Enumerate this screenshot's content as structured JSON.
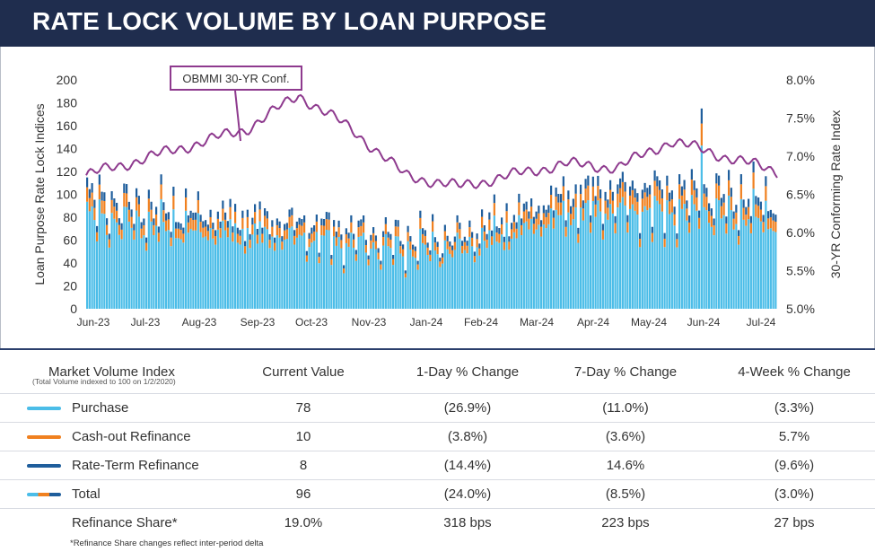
{
  "header": {
    "title": "RATE LOCK VOLUME BY LOAN PURPOSE"
  },
  "colors": {
    "purchase": "#4bbde8",
    "cashout": "#f0801f",
    "rateterm": "#1f5e9c",
    "index_line": "#8e3a8e",
    "header_bg": "#1f2d4e"
  },
  "chart_data": {
    "type": "bar",
    "stacked": true,
    "ylabel": "Loan Purpose Rate Lock Indices",
    "y2label": "30-YR Conforming Rate Index",
    "ylim": [
      0,
      200
    ],
    "y2lim": [
      5.0,
      8.0
    ],
    "y_ticks": [
      "200",
      "180",
      "160",
      "140",
      "120",
      "100",
      "80",
      "60",
      "40",
      "20",
      "0"
    ],
    "y2_ticks": [
      "8.0%",
      "7.5%",
      "7.0%",
      "6.5%",
      "6.0%",
      "5.5%",
      "5.0%"
    ],
    "x_ticks": [
      "Jun-23",
      "Jul-23",
      "Aug-23",
      "Sep-23",
      "Oct-23",
      "Nov-23",
      "Jan-24",
      "Feb-24",
      "Mar-24",
      "Apr-24",
      "May-24",
      "Jun-24",
      "Jul-24"
    ],
    "annotation": "OBMMI 30-YR Conf.",
    "series": [
      {
        "name": "Purchase",
        "color": "#4bbde8"
      },
      {
        "name": "Cash-out Refinance",
        "color": "#f0801f"
      },
      {
        "name": "Rate-Term Refinance",
        "color": "#1f5e9c"
      }
    ],
    "monthly_total_index": [
      {
        "x": "Jun-23",
        "total": 98
      },
      {
        "x": "Jul-23",
        "total": 90
      },
      {
        "x": "Aug-23",
        "total": 85
      },
      {
        "x": "Sep-23",
        "total": 80
      },
      {
        "x": "Oct-23",
        "total": 76
      },
      {
        "x": "Nov-23",
        "total": 68
      },
      {
        "x": "Dec-23",
        "total": 62
      },
      {
        "x": "Jan-24",
        "total": 64
      },
      {
        "x": "Feb-24",
        "total": 82
      },
      {
        "x": "Mar-24",
        "total": 100
      },
      {
        "x": "Apr-24",
        "total": 105
      },
      {
        "x": "May-24",
        "total": 102
      },
      {
        "x": "Jun-24",
        "total": 100
      },
      {
        "x": "Jul-24",
        "total": 96
      }
    ],
    "rate_index": [
      {
        "x": "Jun-23",
        "rate": 6.75
      },
      {
        "x": "Jul-23",
        "rate": 6.95
      },
      {
        "x": "Aug-23",
        "rate": 7.15
      },
      {
        "x": "Sep-23",
        "rate": 7.35
      },
      {
        "x": "Oct-23",
        "rate": 7.8
      },
      {
        "x": "Nov-23",
        "rate": 7.35
      },
      {
        "x": "Dec-23",
        "rate": 6.75
      },
      {
        "x": "Jan-24",
        "rate": 6.6
      },
      {
        "x": "Feb-24",
        "rate": 6.75
      },
      {
        "x": "Mar-24",
        "rate": 6.9
      },
      {
        "x": "Apr-24",
        "rate": 6.85
      },
      {
        "x": "May-24",
        "rate": 7.2
      },
      {
        "x": "Jun-24",
        "rate": 7.0
      },
      {
        "x": "Jul-24",
        "rate": 6.8
      }
    ]
  },
  "table": {
    "headers": [
      "Market Volume Index",
      "Current Value",
      "1-Day % Change",
      "7-Day % Change",
      "4-Week % Change"
    ],
    "subnote": "(Total Volume indexed to 100 on 1/2/2020)",
    "rows": [
      {
        "label": "Purchase",
        "current": "78",
        "d1": "(26.9%)",
        "d7": "(11.0%)",
        "w4": "(3.3%)"
      },
      {
        "label": "Cash-out Refinance",
        "current": "10",
        "d1": "(3.8%)",
        "d7": "(3.6%)",
        "w4": "5.7%"
      },
      {
        "label": "Rate-Term Refinance",
        "current": "8",
        "d1": "(14.4%)",
        "d7": "14.6%",
        "w4": "(9.6%)"
      },
      {
        "label": "Total",
        "current": "96",
        "d1": "(24.0%)",
        "d7": "(8.5%)",
        "w4": "(3.0%)"
      },
      {
        "label": "Refinance Share*",
        "current": "19.0%",
        "d1": "318 bps",
        "d7": "223 bps",
        "w4": "27 bps"
      }
    ],
    "footnote": "*Refinance Share changes reflect inter-period delta"
  }
}
